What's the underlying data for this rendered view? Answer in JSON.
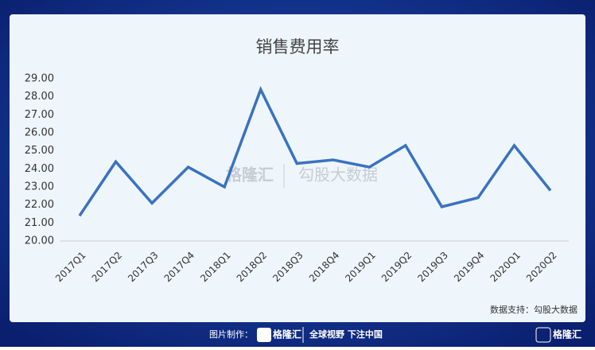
{
  "chart_data": {
    "type": "line",
    "title": "销售费用率",
    "categories": [
      "2017Q1",
      "2017Q2",
      "2017Q3",
      "2017Q4",
      "2018Q1",
      "2018Q2",
      "2018Q3",
      "2018Q4",
      "2019Q1",
      "2019Q2",
      "2019Q3",
      "2019Q4",
      "2020Q1",
      "2020Q2"
    ],
    "values": [
      21.4,
      24.4,
      22.1,
      24.1,
      23.0,
      28.4,
      24.3,
      24.5,
      24.1,
      25.3,
      21.9,
      22.4,
      25.3,
      22.8
    ],
    "color": "#3a72c0",
    "ylim": [
      20,
      29
    ],
    "yticks": [
      {
        "value": 20,
        "label": "20.00"
      },
      {
        "value": 21,
        "label": "21.00"
      },
      {
        "value": 22,
        "label": "22.00"
      },
      {
        "value": 23,
        "label": "23.00"
      },
      {
        "value": 24,
        "label": "24.00"
      },
      {
        "value": 25,
        "label": "25.00"
      },
      {
        "value": 26,
        "label": "26.00"
      },
      {
        "value": 27,
        "label": "27.00"
      },
      {
        "value": 28,
        "label": "28.00"
      },
      {
        "value": 29,
        "label": "29.00"
      }
    ],
    "grid": false,
    "source": "数据支持：勾股大数据",
    "watermark": [
      "格隆汇",
      "勾股大数据"
    ]
  },
  "footer": {
    "made_by": "图片制作：",
    "brand": "格隆汇",
    "slogan": "全球视野 下注中国"
  }
}
